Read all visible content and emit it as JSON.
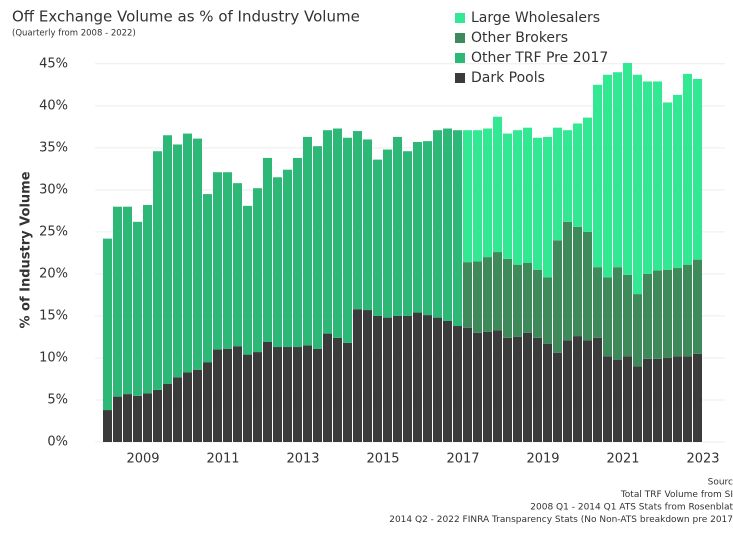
{
  "chart_data": {
    "type": "bar",
    "stacked": true,
    "title": "Off Exchange Volume as % of Industry Volume",
    "subtitle": "(Quarterly from 2008 - 2022)",
    "ylabel": "% of Industry Volume",
    "x": [
      2008,
      2008.25,
      2008.5,
      2008.75,
      2009,
      2009.25,
      2009.5,
      2009.75,
      2010,
      2010.25,
      2010.5,
      2010.75,
      2011,
      2011.25,
      2011.5,
      2011.75,
      2012,
      2012.25,
      2012.5,
      2012.75,
      2013,
      2013.25,
      2013.5,
      2013.75,
      2014,
      2014.25,
      2014.5,
      2014.75,
      2015,
      2015.25,
      2015.5,
      2015.75,
      2016,
      2016.25,
      2016.5,
      2016.75,
      2017,
      2017.25,
      2017.5,
      2017.75,
      2018,
      2018.25,
      2018.5,
      2018.75,
      2019,
      2019.25,
      2019.5,
      2019.75,
      2020,
      2020.25,
      2020.5,
      2020.75,
      2021,
      2021.25,
      2021.5,
      2021.75,
      2022,
      2022.25,
      2022.5,
      2022.75
    ],
    "series": [
      {
        "name": "Large Wholesalers",
        "color": "#33e892",
        "values": [
          null,
          null,
          null,
          null,
          null,
          null,
          null,
          null,
          null,
          null,
          null,
          null,
          null,
          null,
          null,
          null,
          null,
          null,
          null,
          null,
          null,
          null,
          null,
          null,
          null,
          null,
          null,
          null,
          null,
          null,
          null,
          null,
          null,
          null,
          null,
          null,
          15.7,
          15.6,
          15.3,
          16.1,
          14.9,
          16.0,
          16.1,
          15.7,
          16.7,
          13.4,
          10.9,
          12.3,
          13.6,
          21.7,
          24.1,
          23.2,
          25.2,
          26.1,
          22.9,
          22.5,
          19.9,
          20.6,
          22.7,
          21.5
        ]
      },
      {
        "name": "Other Brokers",
        "color": "#3e8a5b",
        "values": [
          null,
          null,
          null,
          null,
          null,
          null,
          null,
          null,
          null,
          null,
          null,
          null,
          null,
          null,
          null,
          null,
          null,
          null,
          null,
          null,
          null,
          null,
          null,
          null,
          null,
          null,
          null,
          null,
          null,
          null,
          null,
          null,
          null,
          null,
          null,
          null,
          7.8,
          8.5,
          8.9,
          9.3,
          9.4,
          8.6,
          8.3,
          8.1,
          7.9,
          13.4,
          14.1,
          13.0,
          12.9,
          8.4,
          9.4,
          11.0,
          9.7,
          8.6,
          10.1,
          10.5,
          10.5,
          10.5,
          10.9,
          11.2
        ]
      },
      {
        "name": "Other TRF Pre 2017",
        "color": "#2db878",
        "values": [
          20.4,
          22.6,
          22.3,
          20.7,
          22.4,
          28.4,
          29.6,
          27.7,
          28.4,
          27.5,
          20.0,
          21.1,
          21.0,
          19.4,
          17.7,
          19.5,
          21.9,
          20.2,
          21.1,
          22.5,
          24.8,
          24.1,
          24.2,
          24.9,
          24.4,
          21.2,
          20.3,
          18.6,
          20.0,
          21.3,
          19.6,
          20.3,
          20.7,
          22.3,
          22.9,
          23.3,
          null,
          null,
          null,
          null,
          null,
          null,
          null,
          null,
          null,
          null,
          null,
          null,
          null,
          null,
          null,
          null,
          null,
          null,
          null,
          null,
          null,
          null,
          null,
          null
        ]
      },
      {
        "name": "Dark Pools",
        "color": "#3b3b3b",
        "values": [
          3.8,
          5.4,
          5.7,
          5.5,
          5.8,
          6.2,
          6.9,
          7.7,
          8.3,
          8.6,
          9.5,
          11.0,
          11.1,
          11.4,
          10.4,
          10.7,
          11.9,
          11.3,
          11.3,
          11.3,
          11.5,
          11.1,
          12.9,
          12.4,
          11.8,
          15.8,
          15.7,
          15.0,
          14.8,
          15.0,
          15.0,
          15.4,
          15.1,
          14.8,
          14.4,
          13.8,
          13.6,
          13.0,
          13.1,
          13.3,
          12.4,
          12.5,
          13.0,
          12.4,
          11.7,
          10.6,
          12.1,
          12.6,
          12.1,
          12.4,
          10.2,
          9.8,
          10.2,
          9.0,
          9.9,
          9.9,
          10.0,
          10.2,
          10.2,
          10.5
        ]
      }
    ],
    "xlim": [
      2007.8,
      2023.55
    ],
    "xticks": [
      2009,
      2011,
      2013,
      2015,
      2017,
      2019,
      2021,
      2023
    ],
    "ylim": [
      0,
      47
    ],
    "yticks": [
      {
        "value": 0,
        "label": "0%"
      },
      {
        "value": 5,
        "label": "5%"
      },
      {
        "value": 10,
        "label": "10%"
      },
      {
        "value": 15,
        "label": "15%"
      },
      {
        "value": 20,
        "label": "20%"
      },
      {
        "value": 25,
        "label": "25%"
      },
      {
        "value": 30,
        "label": "30%"
      },
      {
        "value": 35,
        "label": "35%"
      },
      {
        "value": 40,
        "label": "40%"
      },
      {
        "value": 45,
        "label": "45%"
      }
    ],
    "grid": true,
    "legend": "top-right",
    "source": [
      "Sourc",
      "Total TRF Volume from SI",
      "2008 Q1 - 2014 Q1 ATS Stats from Rosenblat",
      "2014 Q2 - 2022 FINRA Transparency Stats (No Non-ATS breakdown pre 2017"
    ]
  }
}
